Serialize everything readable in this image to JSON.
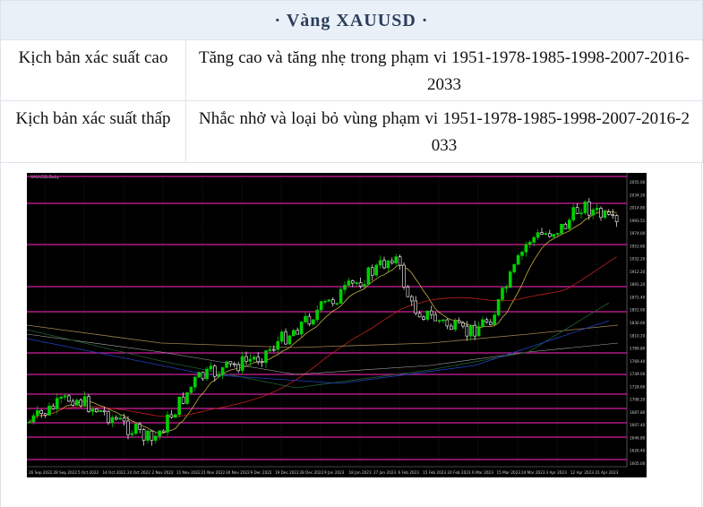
{
  "header": {
    "title": "· Vàng XAUUSD ·"
  },
  "table": {
    "rows": [
      [
        "Kịch bản xác suất cao",
        "Tăng cao và tăng nhẹ trong phạm vi 1951-1978-1985-1998-2007-2016-2033"
      ],
      [
        "Kịch bản xác suất thấp",
        "Nhắc nhở và loại bỏ vùng phạm vi 1951-1978-1985-1998-2007-2016-2033"
      ]
    ]
  },
  "image": {
    "caption": "XAUUSD,Daily",
    "price_labels": [
      "2055.00",
      "2034.20",
      "2014.80",
      "1993.51",
      "1974.00",
      "1953.60",
      "1932.20",
      "1912.20",
      "1891.20",
      "1871.40",
      "1851.00",
      "1830.60",
      "1810.20",
      "1789.80",
      "1769.40",
      "1749.00",
      "1728.60",
      "1708.20",
      "1687.80",
      "1667.40",
      "1646.80",
      "1626.40",
      "1605.00"
    ],
    "date_labels": [
      "26 Sep 2022",
      "28 Sep 2022",
      "5 Oct 2022",
      "14 Oct 2022",
      "24 Oct 2022",
      "2 Nov 2022",
      "11 Nov 2022",
      "21 Nov 2022",
      "30 Nov 2022",
      "9 Dec 2022",
      "19 Dec 2022",
      "28 Dec 2022",
      "9 Jan 2023",
      "18 Jan 2023",
      "27 Jan 2023",
      "6 Feb 2023",
      "15 Feb 2023",
      "24 Feb 2023",
      "6 Mar 2023",
      "15 Mar 2023",
      "24 Mar 2023",
      "3 Apr 2023",
      "12 Apr 2023",
      "21 Apr 2023"
    ]
  }
}
